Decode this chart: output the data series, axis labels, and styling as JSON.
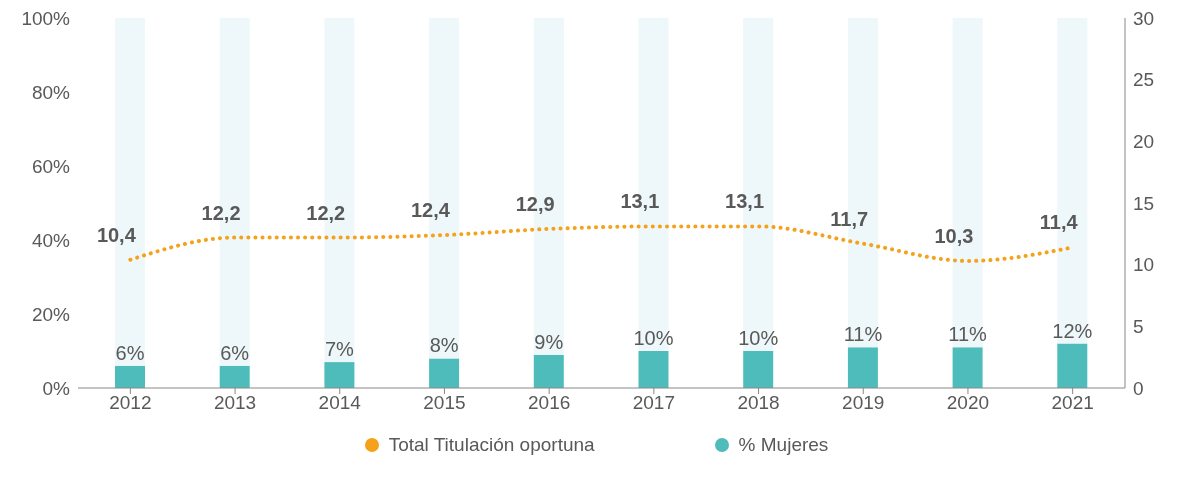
{
  "chart_data": {
    "type": "bar",
    "stacked": true,
    "categories": [
      "2012",
      "2013",
      "2014",
      "2015",
      "2016",
      "2017",
      "2018",
      "2019",
      "2020",
      "2021"
    ],
    "series": [
      {
        "name": "% Mujeres",
        "color": "#4fbcbc",
        "values": [
          6,
          6,
          7,
          8,
          9,
          10,
          10,
          11,
          11,
          12
        ],
        "value_labels": [
          "6%",
          "6%",
          "7%",
          "8%",
          "9%",
          "10%",
          "10%",
          "11%",
          "11%",
          "12%"
        ]
      },
      {
        "color": "#eef7f9",
        "values": [
          94,
          94,
          93,
          92,
          91,
          90,
          90,
          89,
          89,
          88
        ]
      },
      {
        "type": "line",
        "name": "Total Titulación oportuna",
        "color": "#f5a21b",
        "axis": "y2",
        "line_style": "dotted",
        "values": [
          10.4,
          12.2,
          12.2,
          12.4,
          12.9,
          13.1,
          13.1,
          11.7,
          10.3,
          11.4
        ],
        "value_labels": [
          "10,4",
          "12,2",
          "12,2",
          "12,4",
          "12,9",
          "13,1",
          "13,1",
          "11,7",
          "10,3",
          "11,4"
        ]
      }
    ],
    "ylim": [
      0,
      100
    ],
    "yticks": [
      {
        "value": 0,
        "label": "0%"
      },
      {
        "value": 20,
        "label": "20%"
      },
      {
        "value": 40,
        "label": "40%"
      },
      {
        "value": 60,
        "label": "60%"
      },
      {
        "value": 80,
        "label": "80%"
      },
      {
        "value": 100,
        "label": "100%"
      }
    ],
    "y2lim": [
      0,
      30
    ],
    "y2ticks": [
      0,
      5,
      10,
      15,
      20,
      25,
      30
    ],
    "legend": "bottom",
    "marker": "none"
  }
}
